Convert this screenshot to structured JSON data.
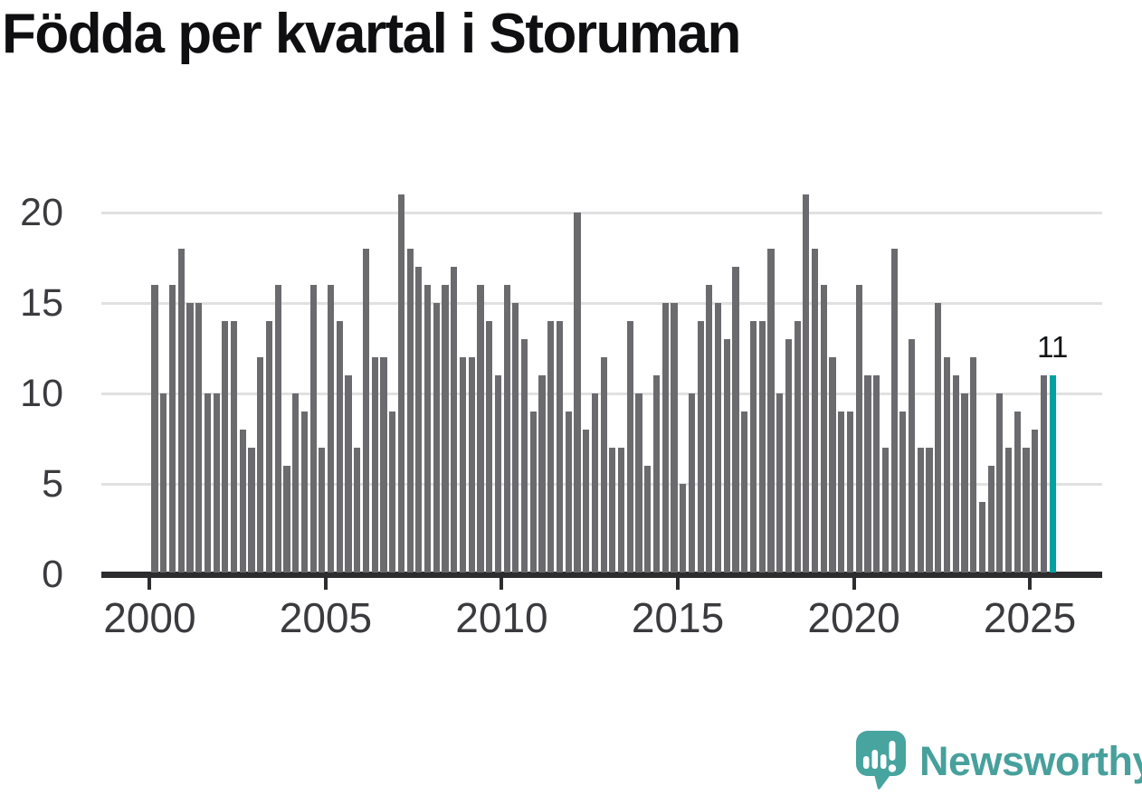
{
  "title": "Födda per kvartal i Storuman",
  "annotation": {
    "last_value_label": "11"
  },
  "logo": {
    "text": "Newsworthy"
  },
  "colors": {
    "bar": "#6b6b6f",
    "highlight": "#00a1a1",
    "gridline": "#e1e1e2",
    "axis": "#2d2d30",
    "tick_label": "#3b3b3f",
    "title": "#0f0f11",
    "logo_teal": "#47a09c"
  },
  "chart_data": {
    "type": "bar",
    "title": "Födda per kvartal i Storuman",
    "xlabel": "",
    "ylabel": "",
    "x_start": "2000-Q1",
    "x_end": "2025-Q3",
    "start_year": 2000,
    "quarters_per_year": 4,
    "x_tick_years": [
      2000,
      2005,
      2010,
      2015,
      2020,
      2025
    ],
    "y_ticks": [
      0,
      5,
      10,
      15,
      20
    ],
    "ylim": [
      0,
      21
    ],
    "grid": true,
    "values": [
      16,
      10,
      16,
      18,
      15,
      15,
      10,
      10,
      14,
      14,
      8,
      7,
      12,
      14,
      16,
      6,
      10,
      9,
      16,
      7,
      16,
      14,
      11,
      7,
      18,
      12,
      12,
      9,
      21,
      18,
      17,
      16,
      15,
      16,
      17,
      12,
      12,
      16,
      14,
      11,
      16,
      15,
      13,
      9,
      11,
      14,
      14,
      9,
      20,
      8,
      10,
      12,
      7,
      7,
      14,
      10,
      6,
      11,
      15,
      15,
      5,
      10,
      14,
      16,
      15,
      13,
      17,
      9,
      14,
      14,
      18,
      10,
      13,
      14,
      21,
      18,
      16,
      12,
      9,
      9,
      16,
      11,
      11,
      7,
      18,
      9,
      13,
      7,
      7,
      15,
      12,
      11,
      10,
      12,
      4,
      6,
      10,
      7,
      9,
      7,
      8,
      11,
      11
    ],
    "highlight": {
      "index": 102,
      "quarter": "2025-Q3",
      "value": 11,
      "label": "11"
    }
  }
}
